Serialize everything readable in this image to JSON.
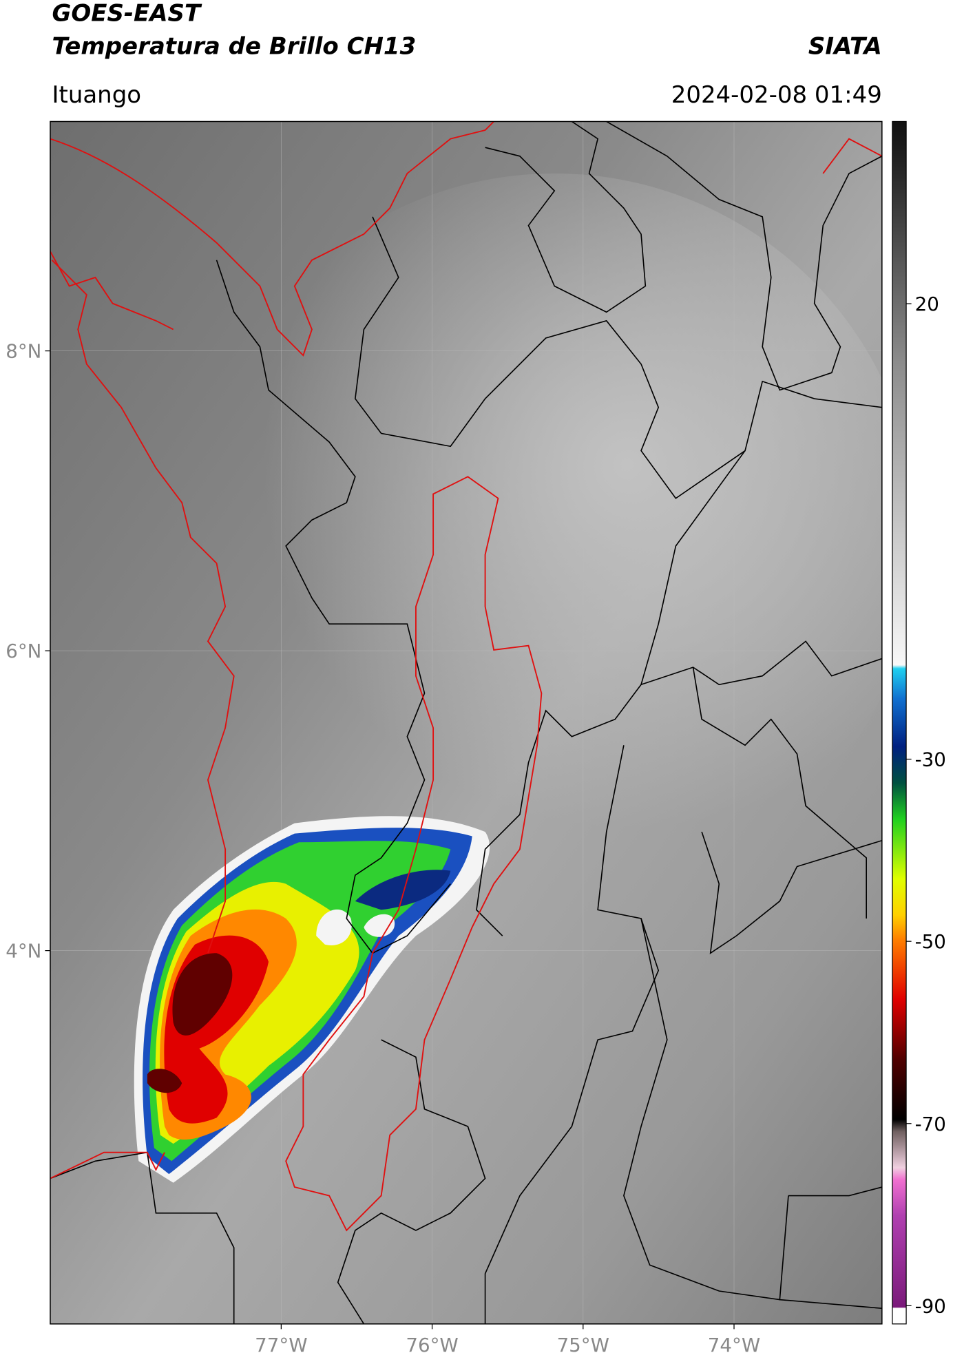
{
  "header": {
    "satellite": "GOES-EAST",
    "product": "Temperatura de Brillo CH13",
    "agency": "SIATA",
    "location": "Ituango",
    "timestamp": "2024-02-08 01:49"
  },
  "map": {
    "xlim": [
      -78.53,
      -73.02
    ],
    "ylim": [
      1.51,
      9.53
    ],
    "xticks": [
      {
        "value": -77,
        "label": "77°W"
      },
      {
        "value": -76,
        "label": "76°W"
      },
      {
        "value": -75,
        "label": "75°W"
      },
      {
        "value": -74,
        "label": "74°W"
      }
    ],
    "yticks": [
      {
        "value": 8,
        "label": "8°N"
      },
      {
        "value": 6,
        "label": "6°N"
      },
      {
        "value": 4,
        "label": "4°N"
      }
    ],
    "grid": true
  },
  "colorbar": {
    "clim": [
      -92,
      40
    ],
    "ticks": [
      20,
      -30,
      -50,
      -70,
      -90
    ]
  }
}
